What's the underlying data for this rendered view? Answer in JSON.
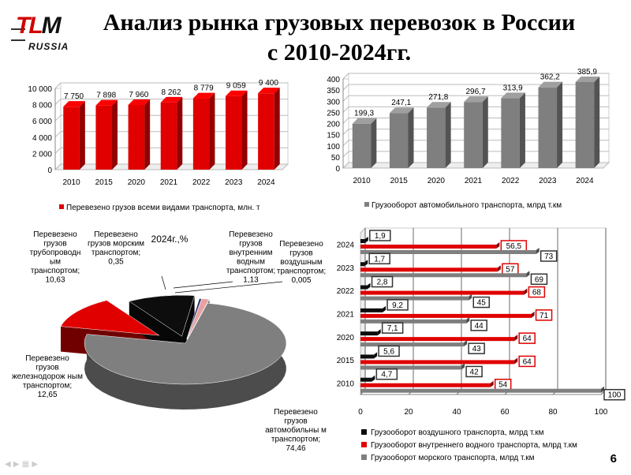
{
  "logo": {
    "mark_left": "TL",
    "mark_right": "M",
    "sub": "RUSSIA"
  },
  "title_line1": "Анализ рынка грузовых перевозок в России",
  "title_line2": "с 2010-2024гг.",
  "page_number": "6",
  "colors": {
    "red": "#e00000",
    "gray": "#7f7f7f",
    "black": "#0d0d0d",
    "pink": "#e8a0a0"
  },
  "chart_data": [
    {
      "type": "bar",
      "id": "total-freight",
      "categories": [
        "2010",
        "2015",
        "2020",
        "2021",
        "2022",
        "2023",
        "2024"
      ],
      "values": [
        7750,
        7898,
        7960,
        8262,
        8779,
        9059,
        9400
      ],
      "value_labels": [
        "7 750",
        "7 898",
        "7 960",
        "8 262",
        "8 779",
        "9 059",
        "9 400"
      ],
      "ylim": [
        0,
        10000
      ],
      "yticks": [
        "0",
        "2 000",
        "4 000",
        "6 000",
        "8 000",
        "10 000"
      ],
      "legend": "Перевезено грузов всеми видами транспорта, млн. т",
      "color": "#e00000"
    },
    {
      "type": "bar",
      "id": "road-turnover",
      "categories": [
        "2010",
        "2015",
        "2020",
        "2021",
        "2022",
        "2023",
        "2024"
      ],
      "values": [
        199.3,
        247.1,
        271.8,
        296.7,
        313.9,
        362.2,
        385.9
      ],
      "value_labels": [
        "199,3",
        "247,1",
        "271,8",
        "296,7",
        "313,9",
        "362,2",
        "385,9"
      ],
      "ylim": [
        0,
        400
      ],
      "yticks": [
        "0",
        "50",
        "100",
        "150",
        "200",
        "250",
        "300",
        "350",
        "400"
      ],
      "legend": "Грузооборот автомобильного транспорта, млрд т.км",
      "color": "#7f7f7f"
    },
    {
      "type": "pie",
      "id": "share-2024",
      "title": "2024г.,%",
      "slices": [
        {
          "name": "Перевезено грузов автомобильным транспортом",
          "value": 74.46,
          "label": "Перевезено грузов автомобильны м транспортом; 74,46",
          "color": "#7f7f7f"
        },
        {
          "name": "Перевезено грузов железнодорожным транспортом",
          "value": 12.65,
          "label": "Перевезено грузов железнодорож ным транспортом; 12,65",
          "color": "#e00000"
        },
        {
          "name": "Перевезено грузов трубопроводным транспортом",
          "value": 10.63,
          "label": "Перевезено грузов трубопроводн ым транспортом; 10,63",
          "color": "#0d0d0d"
        },
        {
          "name": "Перевезено грузов морским транспортом",
          "value": 0.35,
          "label": "Перевезено грузов морским транспортом; 0,35",
          "color": "#2b2b6b"
        },
        {
          "name": "Перевезено грузов внутренним водным транспортом",
          "value": 1.13,
          "label": "Перевезено грузов внутренним водным транспортом; 1,13",
          "color": "#e8a0a0"
        },
        {
          "name": "Перевезено грузов воздушным транспортом",
          "value": 0.005,
          "label": "Перевезено грузов воздушным транспортом; 0,005",
          "color": "#cccccc"
        }
      ]
    },
    {
      "type": "bar",
      "orientation": "horizontal",
      "id": "turnover-by-mode",
      "categories": [
        "2024",
        "2023",
        "2022",
        "2021",
        "2020",
        "2015",
        "2010"
      ],
      "xlim": [
        0,
        100
      ],
      "xticks": [
        "0",
        "20",
        "40",
        "60",
        "80",
        "100"
      ],
      "series": [
        {
          "name": "Грузооборот воздушного транспорта, млрд т.км",
          "values": [
            1.9,
            1.7,
            2.8,
            9.2,
            7.1,
            5.6,
            4.7
          ],
          "labels": [
            "1,9",
            "1,7",
            "2,8",
            "9,2",
            "7,1",
            "5,6",
            "4,7"
          ],
          "color": "#0d0d0d"
        },
        {
          "name": "Грузооборот внутреннего водного транспорта, млрд т.км",
          "values": [
            56.5,
            57,
            68,
            71,
            64,
            64,
            54
          ],
          "labels": [
            "56,5",
            "57",
            "68",
            "71",
            "64",
            "64",
            "54"
          ],
          "color": "#e00000"
        },
        {
          "name": "Грузооборот морского транспорта, млрд т.км",
          "values": [
            73,
            69,
            45,
            44,
            43,
            42,
            100
          ],
          "labels": [
            "73",
            "69",
            "45",
            "44",
            "43",
            "42",
            "100"
          ],
          "color": "#7f7f7f"
        }
      ]
    }
  ]
}
